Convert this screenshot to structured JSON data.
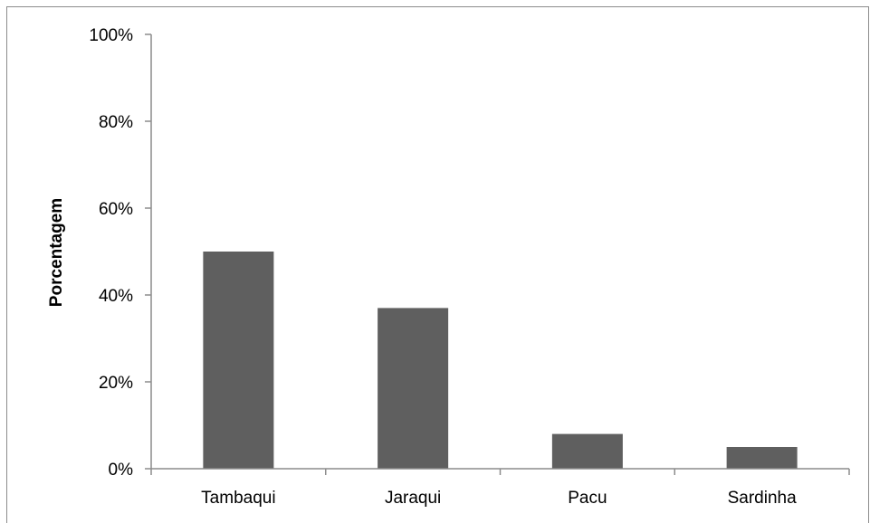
{
  "chart_data": {
    "type": "bar",
    "categories": [
      "Tambaqui",
      "Jaraqui",
      "Pacu",
      "Sardinha"
    ],
    "values": [
      50,
      37,
      8,
      5
    ],
    "title": "",
    "xlabel": "",
    "ylabel": "Porcentagem",
    "ylim": [
      0,
      100
    ],
    "yticks": [
      "0%",
      "20%",
      "40%",
      "60%",
      "80%",
      "100%"
    ],
    "bar_color": "#5f5f5f",
    "axis_color": "#8c8c8c",
    "grid": false,
    "legend": "none"
  }
}
